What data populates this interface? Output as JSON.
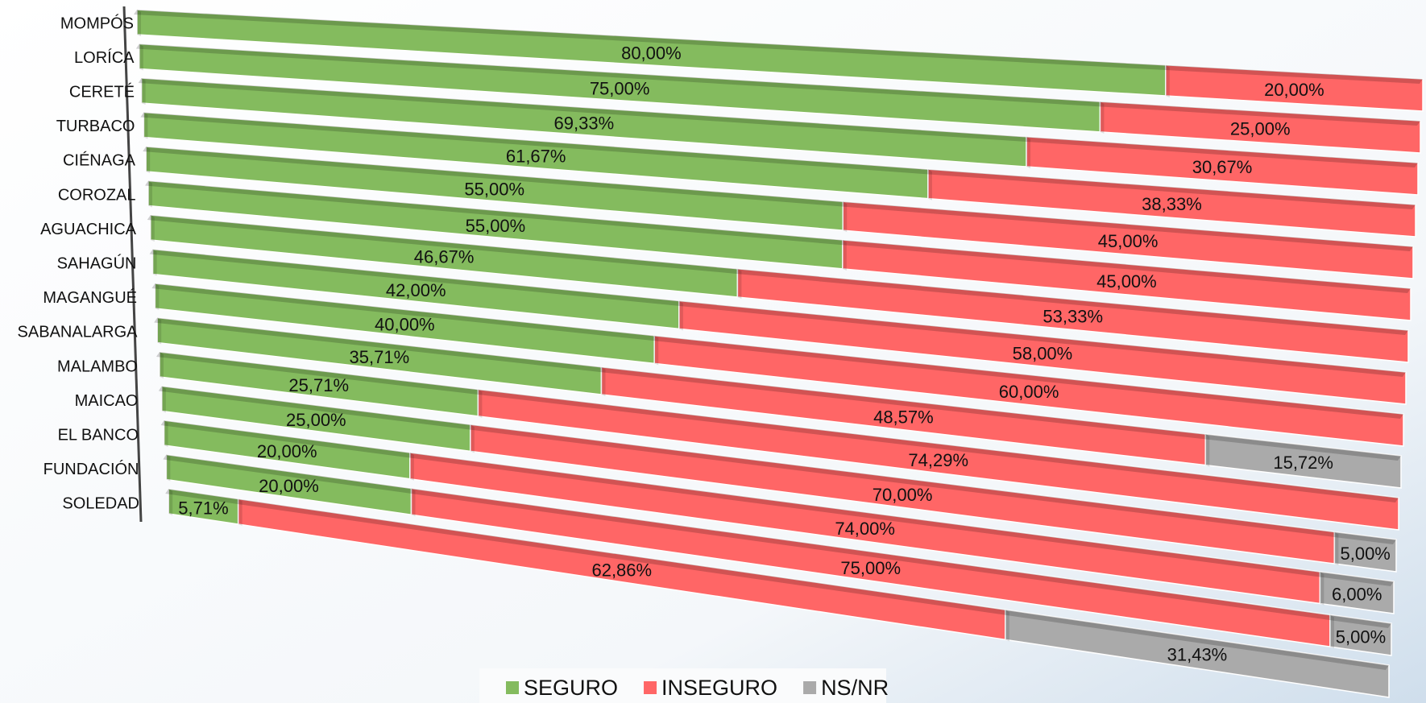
{
  "chart_data": {
    "type": "stacked-bar-3d",
    "categories": [
      "MOMPÓS",
      "LORÍCA",
      "CERETÉ",
      "TURBACO",
      "CIÉNAGA",
      "COROZAL",
      "AGUACHICA",
      "SAHAGÚN",
      "MAGANGUÉ",
      "SABANALARGA",
      "MALAMBO",
      "MAICAO",
      "EL BANCO",
      "FUNDACIÓN",
      "SOLEDAD"
    ],
    "xlim": [
      0,
      100
    ],
    "legend": "bottom",
    "series": [
      {
        "name": "SEGURO",
        "color": "#84bb5e",
        "values": [
          80,
          75,
          69.33,
          61.67,
          55,
          55,
          46.67,
          42,
          40,
          35.71,
          25.71,
          25,
          20,
          20,
          5.71
        ],
        "value_labels": [
          "80,00%",
          "75,00%",
          "69,33%",
          "61,67%",
          "55,00%",
          "55,00%",
          "46,67%",
          "42,00%",
          "40,00%",
          "35,71%",
          "25,71%",
          "25,00%",
          "20,00%",
          "20,00%",
          "5,71%"
        ]
      },
      {
        "name": "INSEGURO",
        "color": "#ff6666",
        "values": [
          20,
          25,
          30.67,
          38.33,
          45,
          45,
          53.33,
          58,
          60,
          48.57,
          74.29,
          70,
          74,
          75,
          62.86
        ],
        "value_labels": [
          "20,00%",
          "25,00%",
          "30,67%",
          "38,33%",
          "45,00%",
          "45,00%",
          "53,33%",
          "58,00%",
          "60,00%",
          "48,57%",
          "74,29%",
          "70,00%",
          "74,00%",
          "75,00%",
          "62,86%"
        ]
      },
      {
        "name": "NS/NR",
        "color": "#aaaaaa",
        "values": [
          null,
          null,
          null,
          null,
          null,
          null,
          null,
          null,
          null,
          15.72,
          null,
          5,
          6,
          5,
          31.43
        ],
        "value_labels": [
          null,
          null,
          null,
          null,
          null,
          null,
          null,
          null,
          null,
          "15,72%",
          null,
          "5,00%",
          "6,00%",
          "5,00%",
          "31,43%"
        ]
      }
    ]
  }
}
